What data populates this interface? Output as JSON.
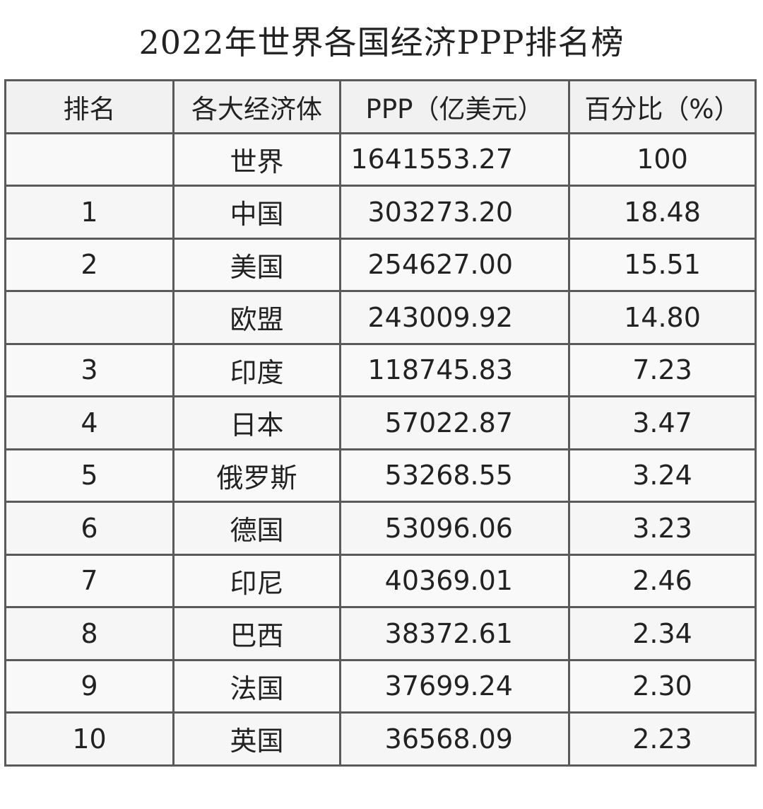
{
  "chart_data": {
    "type": "table",
    "title": "2022年世界各国经济PPP排名榜",
    "columns": [
      "排名",
      "各大经济体",
      "PPP（亿美元）",
      "百分比（%）"
    ],
    "rows": [
      {
        "rank": "",
        "economy": "世界",
        "ppp": "1641553.27",
        "percent": "100"
      },
      {
        "rank": "1",
        "economy": "中国",
        "ppp": "303273.20",
        "percent": "18.48"
      },
      {
        "rank": "2",
        "economy": "美国",
        "ppp": "254627.00",
        "percent": "15.51"
      },
      {
        "rank": "",
        "economy": "欧盟",
        "ppp": "243009.92",
        "percent": "14.80"
      },
      {
        "rank": "3",
        "economy": "印度",
        "ppp": "118745.83",
        "percent": "7.23"
      },
      {
        "rank": "4",
        "economy": "日本",
        "ppp": "57022.87",
        "percent": "3.47"
      },
      {
        "rank": "5",
        "economy": "俄罗斯",
        "ppp": "53268.55",
        "percent": "3.24"
      },
      {
        "rank": "6",
        "economy": "德国",
        "ppp": "53096.06",
        "percent": "3.23"
      },
      {
        "rank": "7",
        "economy": "印尼",
        "ppp": "40369.01",
        "percent": "2.46"
      },
      {
        "rank": "8",
        "economy": "巴西",
        "ppp": "38372.61",
        "percent": "2.34"
      },
      {
        "rank": "9",
        "economy": "法国",
        "ppp": "37699.24",
        "percent": "2.30"
      },
      {
        "rank": "10",
        "economy": "英国",
        "ppp": "36568.09",
        "percent": "2.23"
      }
    ]
  }
}
